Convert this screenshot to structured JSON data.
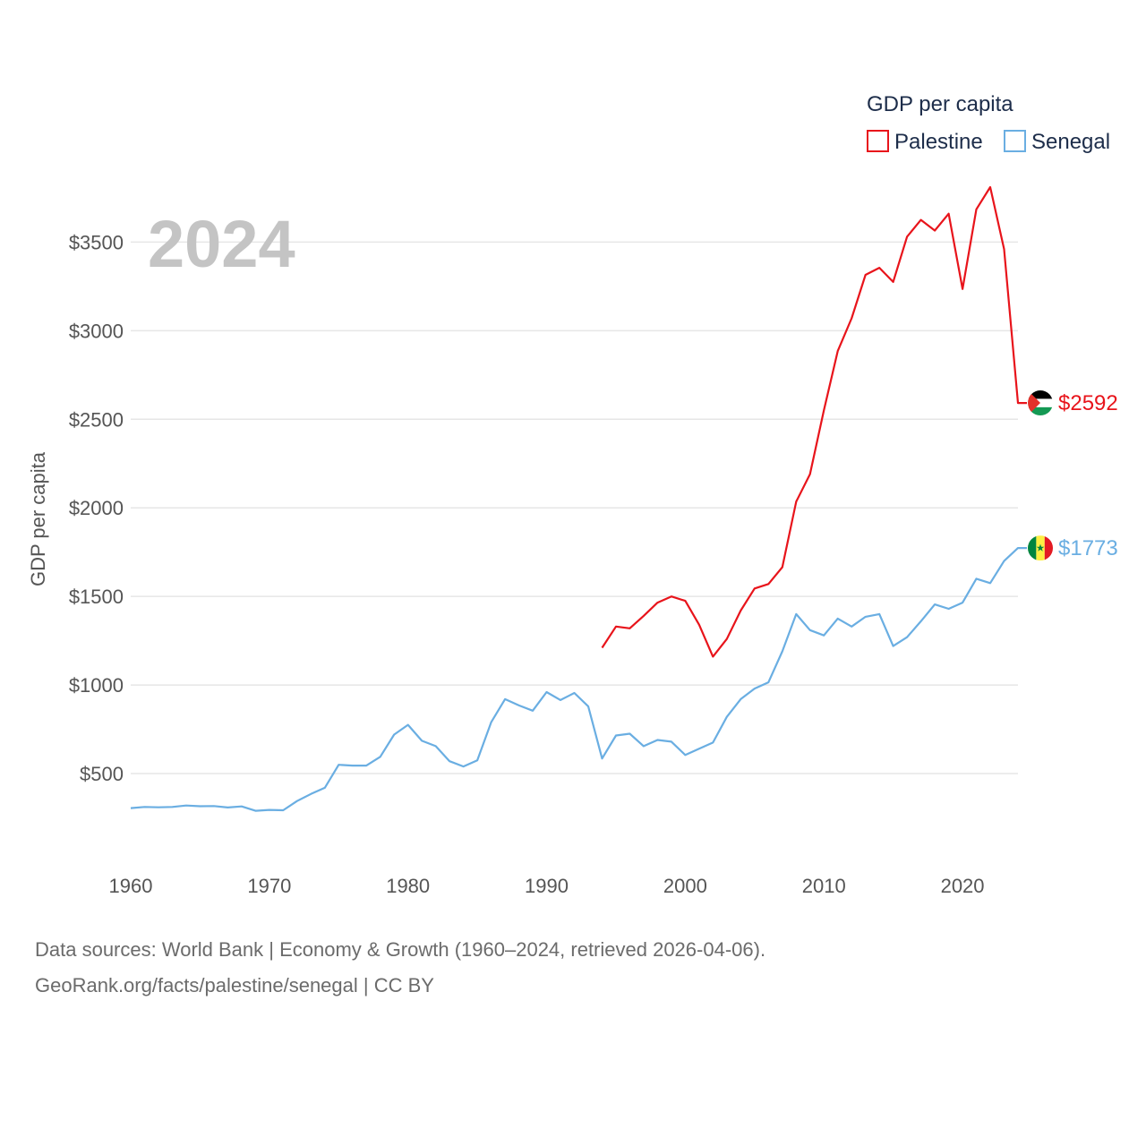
{
  "chart_data": {
    "type": "line",
    "title": "GDP per capita",
    "current_year_label": "2024",
    "ylabel": "GDP per capita",
    "xlabel": "",
    "xlim": [
      1960,
      2024
    ],
    "ylim": [
      0,
      3800
    ],
    "y_ticks": [
      500,
      1000,
      1500,
      2000,
      2500,
      3000,
      3500
    ],
    "y_tick_labels": [
      "$500",
      "$1000",
      "$1500",
      "$2000",
      "$2500",
      "$3000",
      "$3500"
    ],
    "x_ticks": [
      1960,
      1970,
      1980,
      1990,
      2000,
      2010,
      2020
    ],
    "x_tick_labels": [
      "1960",
      "1970",
      "1980",
      "1990",
      "2000",
      "2010",
      "2020"
    ],
    "grid": true,
    "legend_position": "top-right",
    "series": [
      {
        "name": "Palestine",
        "color": "#e8141b",
        "flag_icon": "palestine-flag-icon",
        "end_label": "$2592",
        "x": [
          1994,
          1995,
          1996,
          1997,
          1998,
          1999,
          2000,
          2001,
          2002,
          2003,
          2004,
          2005,
          2006,
          2007,
          2008,
          2009,
          2010,
          2011,
          2012,
          2013,
          2014,
          2015,
          2016,
          2017,
          2018,
          2019,
          2020,
          2021,
          2022,
          2023,
          2024
        ],
        "values": [
          1210,
          1330,
          1320,
          1390,
          1465,
          1500,
          1475,
          1340,
          1160,
          1260,
          1420,
          1545,
          1570,
          1665,
          2035,
          2190,
          2550,
          2885,
          3070,
          3315,
          3355,
          3275,
          3530,
          3625,
          3565,
          3660,
          3235,
          3685,
          3810,
          3460,
          2592
        ]
      },
      {
        "name": "Senegal",
        "color": "#6aaee2",
        "flag_icon": "senegal-flag-icon",
        "end_label": "$1773",
        "x": [
          1960,
          1961,
          1962,
          1963,
          1964,
          1965,
          1966,
          1967,
          1968,
          1969,
          1970,
          1971,
          1972,
          1973,
          1974,
          1975,
          1976,
          1977,
          1978,
          1979,
          1980,
          1981,
          1982,
          1983,
          1984,
          1985,
          1986,
          1987,
          1988,
          1989,
          1990,
          1991,
          1992,
          1993,
          1994,
          1995,
          1996,
          1997,
          1998,
          1999,
          2000,
          2001,
          2002,
          2003,
          2004,
          2005,
          2006,
          2007,
          2008,
          2009,
          2010,
          2011,
          2012,
          2013,
          2014,
          2015,
          2016,
          2017,
          2018,
          2019,
          2020,
          2021,
          2022,
          2023,
          2024
        ],
        "values": [
          305,
          312,
          310,
          312,
          320,
          316,
          317,
          309,
          315,
          290,
          295,
          293,
          345,
          385,
          420,
          550,
          545,
          545,
          595,
          720,
          775,
          685,
          655,
          570,
          540,
          575,
          790,
          920,
          885,
          855,
          960,
          915,
          955,
          880,
          585,
          715,
          725,
          655,
          690,
          680,
          605,
          640,
          675,
          820,
          920,
          980,
          1015,
          1190,
          1400,
          1310,
          1280,
          1375,
          1330,
          1385,
          1400,
          1220,
          1270,
          1360,
          1455,
          1430,
          1465,
          1600,
          1575,
          1700,
          1773
        ]
      }
    ]
  },
  "footer": {
    "line1": "Data sources: World Bank | Economy & Growth (1960–2024, retrieved 2026-04-06).",
    "line2": "GeoRank.org/facts/palestine/senegal | CC BY"
  },
  "colors": {
    "palestine_flag": [
      "#000000",
      "#ffffff",
      "#149954",
      "#e4312b"
    ],
    "senegal_flag": [
      "#00853f",
      "#fdef42",
      "#e31b23"
    ]
  }
}
